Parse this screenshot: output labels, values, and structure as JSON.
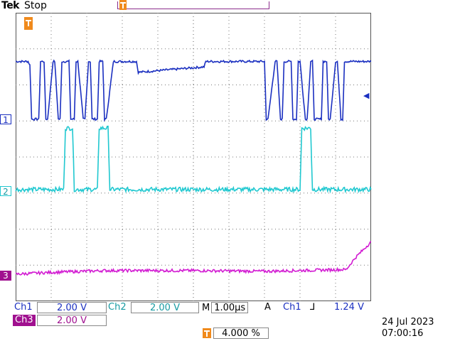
{
  "header": {
    "brand": "Tek",
    "status": "Stop"
  },
  "channels": {
    "ch1": {
      "label": "Ch1",
      "scale": "2.00 V",
      "marker": "1",
      "color": "#1a2fc0"
    },
    "ch2": {
      "label": "Ch2",
      "scale": "2.00 V",
      "marker": "2",
      "color": "#20c8d0"
    },
    "ch3": {
      "label": "Ch3",
      "scale": "2.00 V",
      "marker": "3",
      "color": "#d21bd2"
    }
  },
  "timebase": {
    "label": "M",
    "value": "1.00µs"
  },
  "trigger": {
    "mode": "A",
    "source": "Ch1",
    "slope": "⅃",
    "level": "1.24 V",
    "position": "4.000 %",
    "level_arrow": "◀"
  },
  "datetime": {
    "date": "24 Jul   2023",
    "time": "07:00:16"
  },
  "grid": {
    "divisions_x": 10,
    "divisions_y": 8,
    "line_color": "#777777"
  },
  "chart_data": {
    "type": "line",
    "xlim": [
      0,
      10
    ],
    "ylim": [
      0,
      8
    ],
    "series": [
      {
        "key": "ch1",
        "color": "#1a2fc0",
        "x": [
          0,
          0.35,
          0.4,
          0.45,
          0.65,
          0.7,
          0.8,
          0.85,
          0.9,
          1.05,
          1.1,
          1.2,
          1.25,
          1.3,
          1.5,
          1.55,
          1.65,
          1.7,
          1.75,
          1.9,
          1.95,
          2.05,
          2.1,
          2.15,
          2.3,
          2.35,
          2.45,
          2.5,
          2.55,
          2.75,
          2.8,
          3.4,
          3.45,
          5.3,
          5.35,
          7.0,
          7.05,
          7.1,
          7.3,
          7.35,
          7.45,
          7.5,
          7.55,
          7.75,
          7.8,
          7.9,
          7.95,
          8.0,
          8.15,
          8.2,
          8.3,
          8.35,
          8.4,
          8.6,
          8.65,
          8.75,
          8.8,
          8.85,
          9.0,
          9.05,
          9.15,
          9.2,
          9.25,
          9.4,
          9.45,
          10
        ],
        "y": [
          6.65,
          6.65,
          6.55,
          5.05,
          5.05,
          6.65,
          6.65,
          5.05,
          5.05,
          6.65,
          6.65,
          5.05,
          5.05,
          6.65,
          6.65,
          5.05,
          5.05,
          6.65,
          6.65,
          5.05,
          5.05,
          6.65,
          6.65,
          5.05,
          5.05,
          6.65,
          6.65,
          5.05,
          5.05,
          6.65,
          6.65,
          6.65,
          6.35,
          6.5,
          6.65,
          6.65,
          5.05,
          5.05,
          6.65,
          6.65,
          5.05,
          5.05,
          6.65,
          6.65,
          5.05,
          5.05,
          6.65,
          6.65,
          5.05,
          5.05,
          6.65,
          6.65,
          5.05,
          5.05,
          6.65,
          6.65,
          5.05,
          5.05,
          6.65,
          6.65,
          5.05,
          5.05,
          6.65,
          6.65,
          6.65,
          6.65
        ]
      },
      {
        "key": "ch2",
        "color": "#20c8d0",
        "x": [
          0,
          1.35,
          1.4,
          1.6,
          1.65,
          2.3,
          2.35,
          2.6,
          2.65,
          8.0,
          8.05,
          8.3,
          8.35,
          10
        ],
        "y": [
          3.1,
          3.1,
          4.8,
          4.8,
          3.1,
          3.1,
          4.8,
          4.8,
          3.1,
          3.1,
          4.8,
          4.8,
          3.1,
          3.1
        ],
        "noise": 0.06
      },
      {
        "key": "ch3",
        "color": "#d21bd2",
        "x": [
          0,
          1.0,
          2.5,
          5.0,
          7.0,
          9.3,
          9.55,
          10
        ],
        "y": [
          0.75,
          0.8,
          0.85,
          0.85,
          0.83,
          0.88,
          1.2,
          1.65
        ],
        "noise": 0.04
      }
    ]
  }
}
